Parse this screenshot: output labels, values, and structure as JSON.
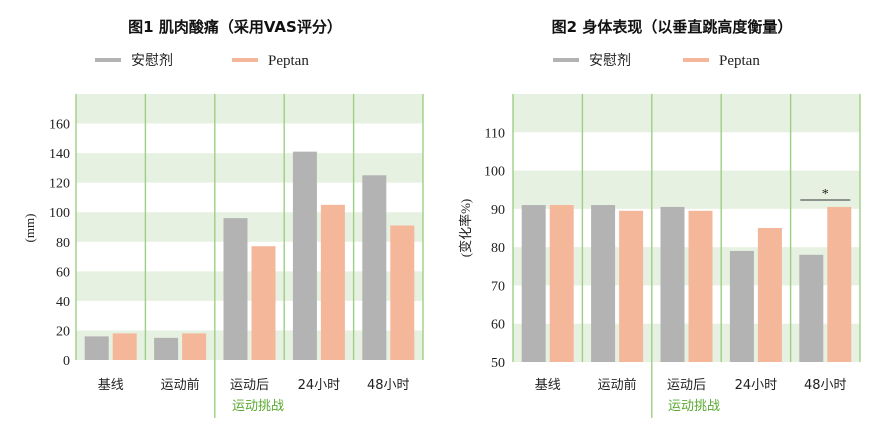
{
  "colors": {
    "placebo": "#b3b3b3",
    "peptan": "#f4b79a",
    "band": "#e7f1e2",
    "divider": "#9ccf83",
    "sublabel": "#5aa832"
  },
  "chart_data": [
    {
      "type": "bar",
      "title": "图1 肌肉酸痛（采用VAS评分）",
      "ylabel": "(mm)",
      "ylim": [
        0,
        180
      ],
      "yticks": [
        0,
        20,
        40,
        60,
        80,
        100,
        120,
        140,
        160
      ],
      "categories": [
        "基线",
        "运动前",
        "运动后",
        "24小时",
        "48小时"
      ],
      "group_label": "运动挑战",
      "series": [
        {
          "name": "安慰剂",
          "values": [
            16,
            15,
            96,
            141,
            125
          ]
        },
        {
          "name": "Peptan",
          "values": [
            18,
            18,
            77,
            105,
            91
          ]
        }
      ],
      "annotations": []
    },
    {
      "type": "bar",
      "title": "图2 身体表现（以垂直跳高度衡量）",
      "ylabel": "(变化率%)",
      "ylim": [
        50,
        120
      ],
      "yticks": [
        50,
        60,
        70,
        80,
        90,
        100,
        110
      ],
      "categories": [
        "基线",
        "运动前",
        "运动后",
        "24小时",
        "48小时"
      ],
      "group_label": "运动挑战",
      "series": [
        {
          "name": "安慰剂",
          "values": [
            91,
            91,
            90.5,
            79,
            78
          ]
        },
        {
          "name": "Peptan",
          "values": [
            91,
            89.5,
            89.5,
            85,
            90.5
          ]
        }
      ],
      "annotations": [
        {
          "category": "48小时",
          "text": "*"
        }
      ]
    }
  ]
}
